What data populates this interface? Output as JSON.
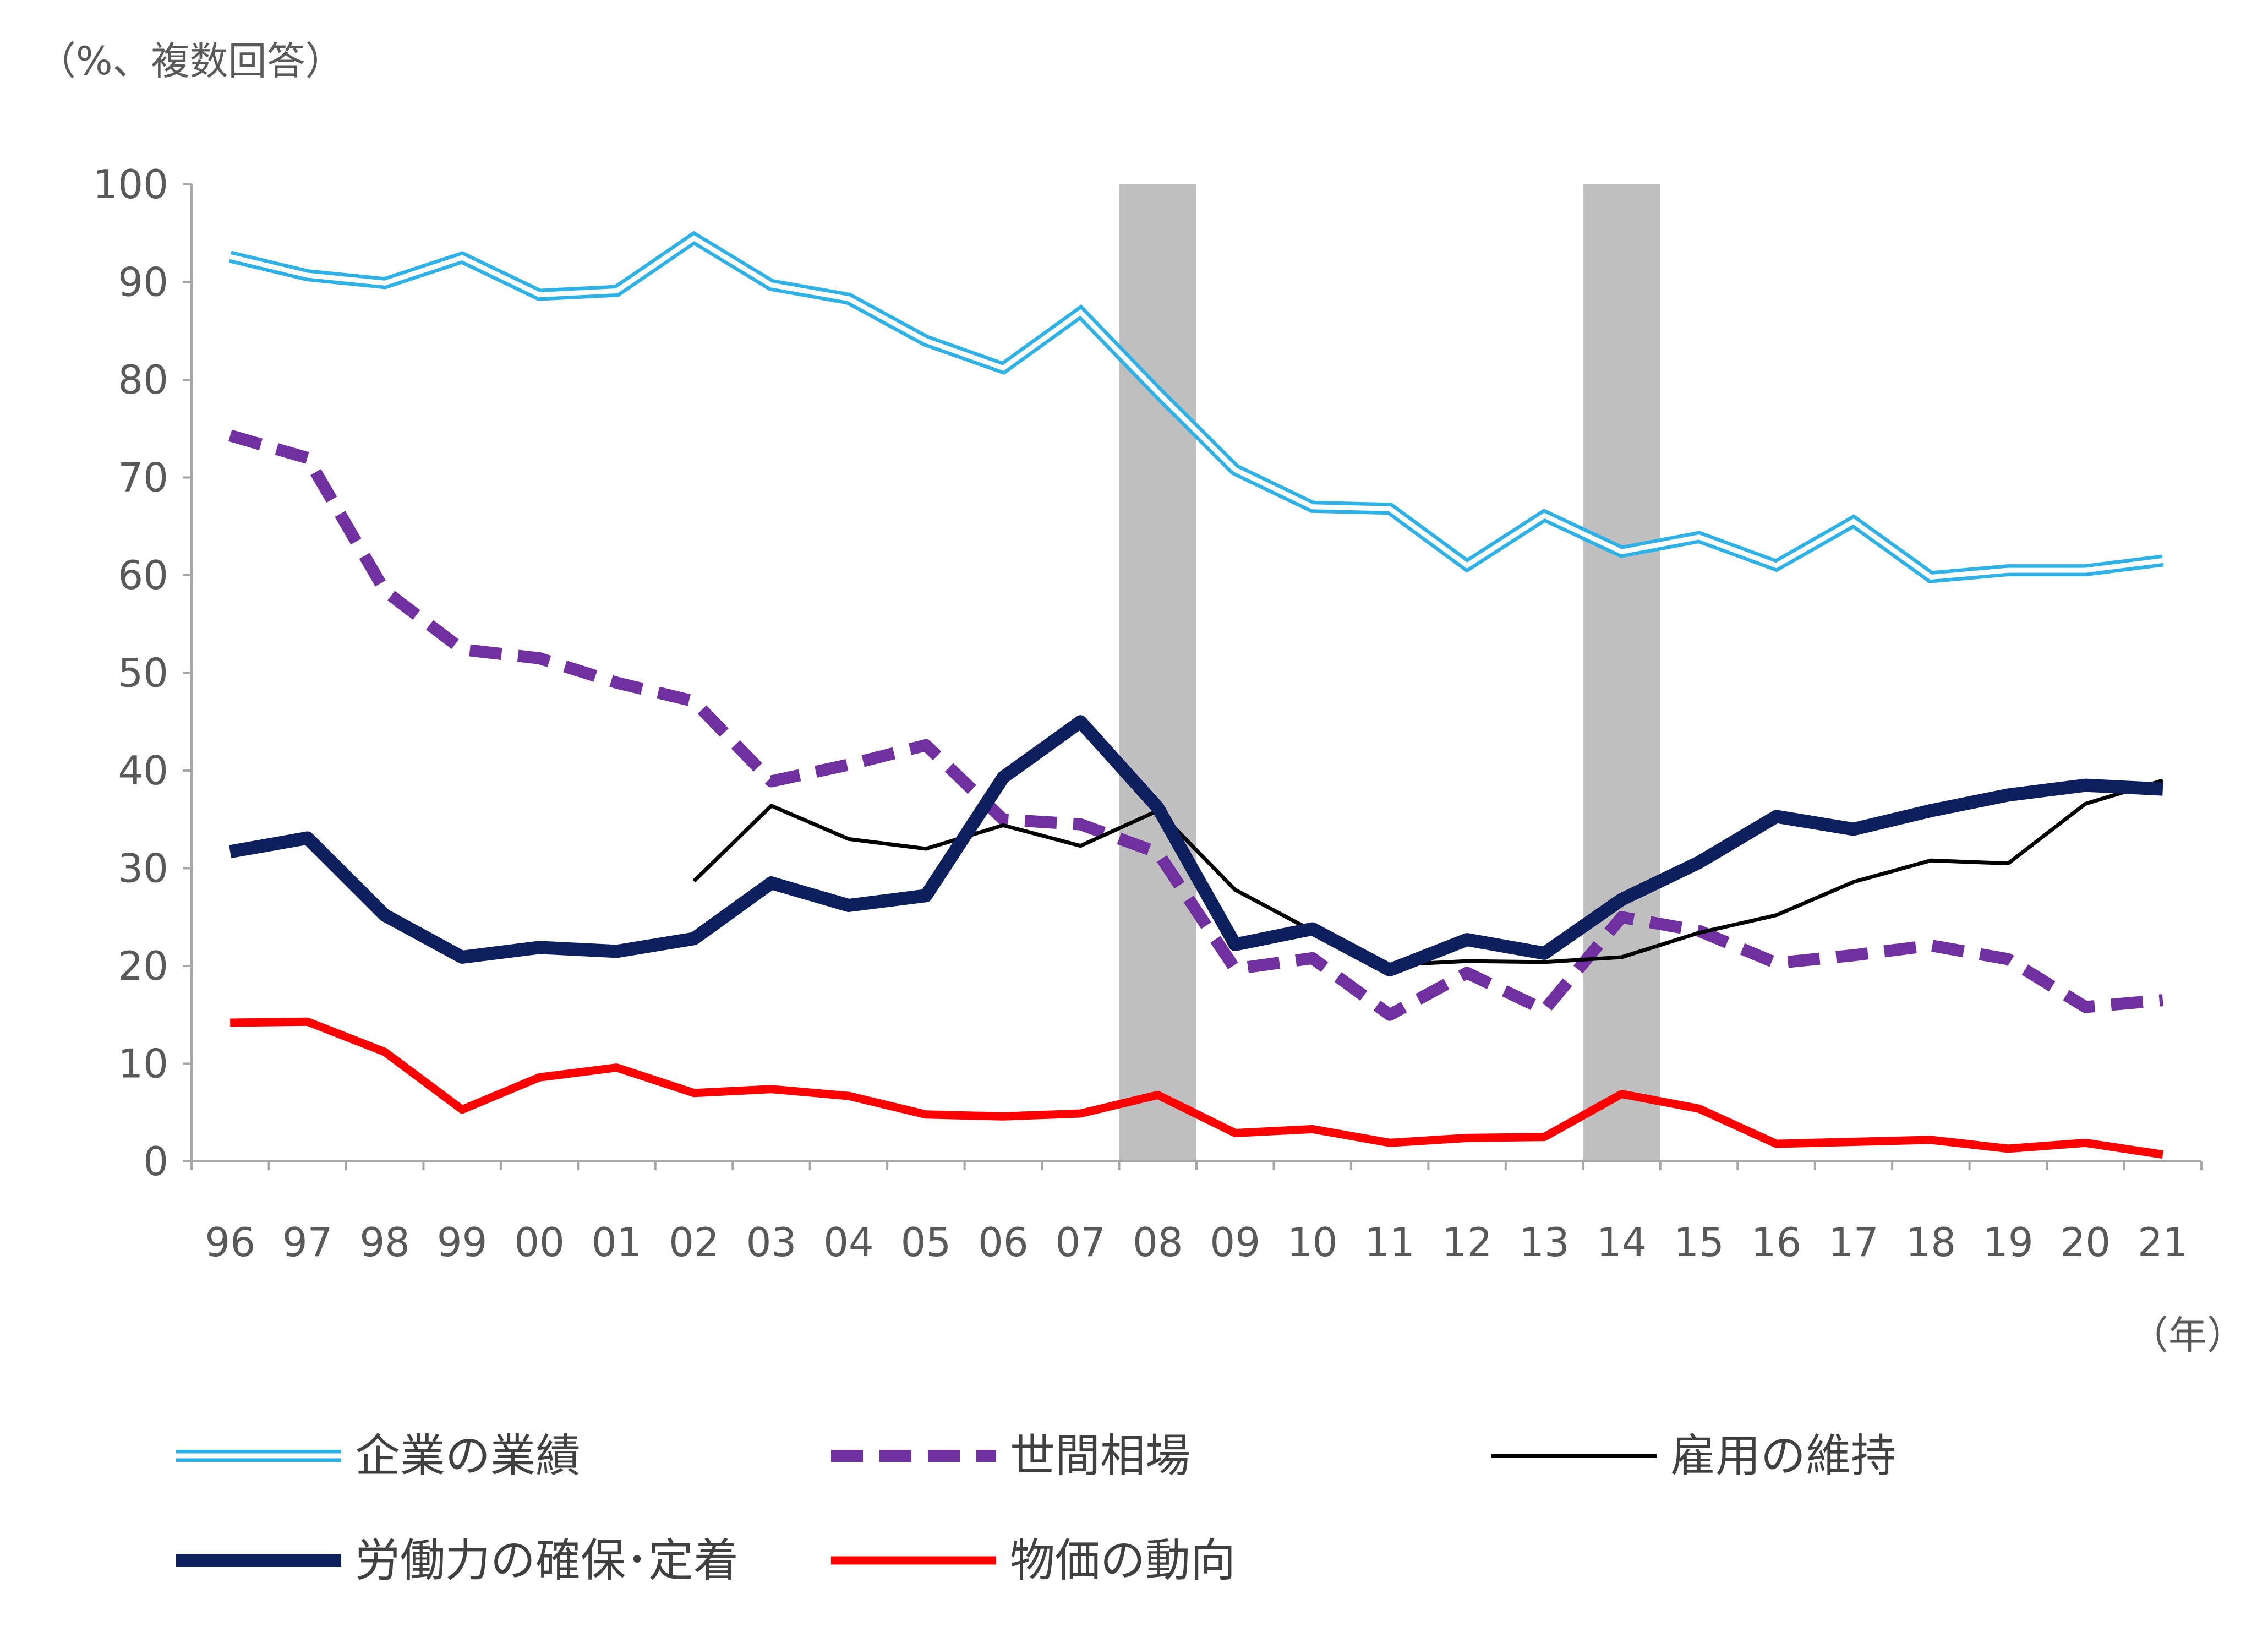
{
  "chart_data": {
    "type": "line",
    "y_unit_label": "（%、複数回答）",
    "x_unit_label": "（年）",
    "x": [
      "96",
      "97",
      "98",
      "99",
      "00",
      "01",
      "02",
      "03",
      "04",
      "05",
      "06",
      "07",
      "08",
      "09",
      "10",
      "11",
      "12",
      "13",
      "14",
      "15",
      "16",
      "17",
      "18",
      "19",
      "20",
      "21"
    ],
    "ylim": [
      0,
      100
    ],
    "yticks": [
      0,
      10,
      20,
      30,
      40,
      50,
      60,
      70,
      80,
      90,
      100
    ],
    "grid": false,
    "legend_position": "bottom",
    "shaded_periods": [
      [
        "07",
        "09"
      ],
      [
        "13",
        "15"
      ]
    ],
    "series": [
      {
        "name": "企業の業績",
        "color": "#2db1e6",
        "style": "double",
        "values": [
          92.6,
          90.7,
          89.9,
          92.5,
          88.7,
          89.1,
          94.5,
          89.7,
          88.3,
          84.0,
          81.2,
          86.9,
          78.7,
          70.8,
          67.0,
          66.8,
          61.0,
          66.1,
          62.4,
          63.9,
          61.0,
          65.5,
          59.8,
          60.5,
          60.5,
          61.5
        ]
      },
      {
        "name": "世間相場",
        "color": "#7030a0",
        "style": "dashed",
        "values": [
          74.3,
          72.0,
          58.4,
          52.4,
          51.5,
          49.0,
          47.1,
          38.9,
          40.6,
          42.6,
          35.0,
          34.5,
          31.6,
          19.7,
          20.8,
          15.0,
          19.3,
          15.5,
          25.0,
          23.6,
          20.3,
          21.1,
          22.1,
          20.7,
          15.8,
          16.5
        ]
      },
      {
        "name": "雇用の維持",
        "color": "#000000",
        "style": "thin",
        "values": [
          null,
          null,
          null,
          null,
          null,
          null,
          28.7,
          36.4,
          33.0,
          32.0,
          34.4,
          32.3,
          35.9,
          27.8,
          23.6,
          20.1,
          20.5,
          20.4,
          20.9,
          23.4,
          25.2,
          28.6,
          30.8,
          30.5,
          36.6,
          39.0
        ]
      },
      {
        "name": "労働力の確保･定着",
        "color": "#0d1f5c",
        "style": "thick",
        "values": [
          31.7,
          33.1,
          25.2,
          20.9,
          21.9,
          21.5,
          22.8,
          28.5,
          26.2,
          27.2,
          39.3,
          45.0,
          36.2,
          22.2,
          23.8,
          19.6,
          22.7,
          21.3,
          26.8,
          30.6,
          35.3,
          34.0,
          35.9,
          37.5,
          38.5,
          38.1
        ]
      },
      {
        "name": "物価の動向",
        "color": "#ff0000",
        "style": "solid",
        "values": [
          14.2,
          14.3,
          11.2,
          5.3,
          8.6,
          9.6,
          7.0,
          7.4,
          6.7,
          4.8,
          4.6,
          4.9,
          6.8,
          2.9,
          3.3,
          1.9,
          2.4,
          2.5,
          6.9,
          5.4,
          1.8,
          2.0,
          2.2,
          1.3,
          1.9,
          0.7
        ]
      }
    ]
  }
}
